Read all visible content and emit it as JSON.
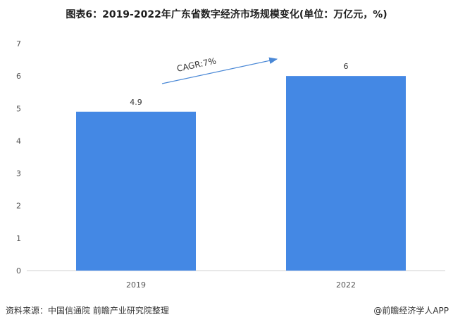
{
  "title": "图表6：2019-2022年广东省数字经济市场规模变化(单位：万亿元，%)",
  "footer": {
    "source": "资料来源：中国信通院 前瞻产业研究院整理",
    "brand": "@前瞻经济学人APP"
  },
  "colors": {
    "bar": "#4488e4",
    "arrow": "#4a88d6"
  },
  "chart_data": {
    "type": "bar",
    "categories": [
      "2019",
      "2022"
    ],
    "values": [
      4.9,
      6
    ],
    "value_labels": [
      "4.9",
      "6"
    ],
    "ylim": [
      0,
      7
    ],
    "yticks": [
      "0",
      "1",
      "2",
      "3",
      "4",
      "5",
      "6",
      "7"
    ],
    "grid": false,
    "annotation": "CAGR:7%"
  }
}
